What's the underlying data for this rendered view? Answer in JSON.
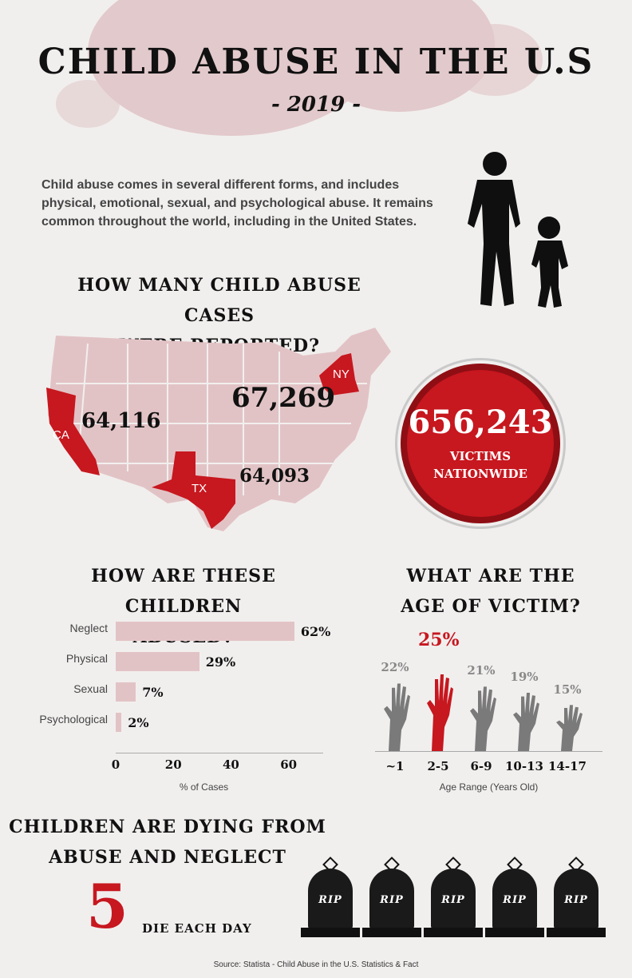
{
  "header": {
    "title": "CHILD ABUSE IN THE U.S",
    "subtitle": "- 2019 -"
  },
  "intro": {
    "text": "Child abuse comes in several different forms, and includes physical, emotional, sexual, and psychological abuse. It remains common throughout the world, including in the United States."
  },
  "map_section": {
    "heading_line1": "HOW MANY CHILD ABUSE CASES",
    "heading_line2": "WERE REPORTED?",
    "states": [
      {
        "abbr": "CA",
        "value": "64,116"
      },
      {
        "abbr": "NY",
        "value": "67,269"
      },
      {
        "abbr": "TX",
        "value": "64,093"
      }
    ],
    "accent_color": "#c7171f",
    "map_color": "#e2c3c5"
  },
  "national": {
    "value": "656,243",
    "label_line1": "VICTIMS",
    "label_line2": "NATIONWIDE"
  },
  "abuse_types": {
    "heading_line1": "HOW ARE THESE CHILDREN",
    "heading_line2": "ABUSED?",
    "chart_data": {
      "type": "bar",
      "orientation": "horizontal",
      "categories": [
        "Neglect",
        "Physical",
        "Sexual",
        "Psychological"
      ],
      "values": [
        62,
        29,
        7,
        2
      ],
      "value_labels": [
        "62%",
        "29%",
        "7%",
        "2%"
      ],
      "xlabel": "% of Cases",
      "xticks": [
        "0",
        "20",
        "40",
        "60"
      ],
      "xlim": [
        0,
        72
      ]
    }
  },
  "age": {
    "heading_line1": "WHAT ARE THE",
    "heading_line2": "AGE OF VICTIM?",
    "chart_data": {
      "type": "bar",
      "categories": [
        "~1",
        "2-5",
        "6-9",
        "10-13",
        "14-17"
      ],
      "values": [
        22,
        25,
        21,
        19,
        15
      ],
      "value_labels": [
        "22%",
        "25%",
        "21%",
        "19%",
        "15%"
      ],
      "xlabel": "Age Range (Years Old)",
      "highlight_index": 1,
      "highlight_color": "#c7171f",
      "base_color": "#7a7a7a"
    }
  },
  "deaths": {
    "heading_line1": "CHILDREN ARE DYING FROM",
    "heading_line2": "ABUSE AND NEGLECT",
    "number": "5",
    "label": "DIE EACH DAY",
    "tombstone_text": [
      "RIP",
      "RIP",
      "RIP",
      "RIP",
      "RIP"
    ]
  },
  "source": "Source: Statista - Child Abuse in the U.S. Statistics & Fact"
}
